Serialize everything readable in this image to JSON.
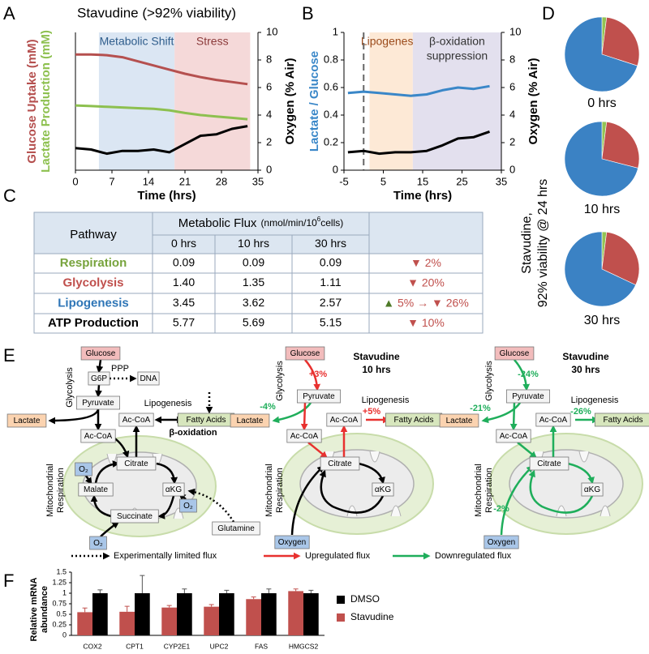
{
  "panel_labels": [
    "A",
    "B",
    "C",
    "D",
    "E",
    "F"
  ],
  "chart_data": [
    {
      "type": "line",
      "title": "Stavudine (>92% viability)",
      "x_label": "Time (hrs)",
      "y_label": [
        "Glucose Uptake (mM)",
        "Lactate Production (mM)"
      ],
      "y2_label": "Oxygen (% Air)",
      "xlim": [
        0,
        35
      ],
      "xticks": [
        0,
        7,
        14,
        21,
        28,
        35
      ],
      "ylim": [
        0,
        2
      ],
      "y2lim": [
        0,
        10
      ],
      "y2ticks": [
        0,
        2,
        4,
        6,
        8,
        10
      ],
      "regions": [
        {
          "label": [
            "Metabolic Shift"
          ],
          "xlim": [
            4.5,
            19
          ],
          "color": "#dbe6f3",
          "text_color": "#2f5d8c"
        },
        {
          "label": [
            "Stress"
          ],
          "xlim": [
            19,
            33.5
          ],
          "color": "#f5d9d9",
          "text_color": "#8b3a3a"
        }
      ],
      "x": [
        0,
        3,
        6,
        9,
        12,
        15,
        18,
        21,
        24,
        27,
        30,
        33
      ],
      "series": [
        {
          "color": "#b5504f",
          "values": [
            1.68,
            1.68,
            1.67,
            1.64,
            1.58,
            1.52,
            1.46,
            1.4,
            1.35,
            1.31,
            1.28,
            1.25
          ]
        },
        {
          "color": "#8dc04f",
          "values": [
            0.94,
            0.93,
            0.92,
            0.91,
            0.9,
            0.89,
            0.87,
            0.83,
            0.8,
            0.78,
            0.76,
            0.74
          ]
        },
        {
          "color": "#000000",
          "axis": "y2",
          "values": [
            1.6,
            1.5,
            1.2,
            1.4,
            1.4,
            1.5,
            1.3,
            1.9,
            2.5,
            2.6,
            3.0,
            3.2
          ]
        }
      ]
    },
    {
      "type": "line",
      "x_label": "Time (hrs)",
      "y_label": [
        "Lactate / Glucose"
      ],
      "y2_label": "Oxygen (% Air)",
      "xlim": [
        -5,
        35
      ],
      "xticks": [
        -5,
        5,
        15,
        25,
        35
      ],
      "ylim": [
        0,
        1
      ],
      "yticks": [
        0,
        0.2,
        0.4,
        0.6,
        0.8,
        1
      ],
      "y2lim": [
        0,
        10
      ],
      "y2ticks": [
        0,
        2,
        4,
        6,
        8,
        10
      ],
      "vline": 0,
      "regions": [
        {
          "label": [
            "Lipogenesis"
          ],
          "xlim": [
            1.5,
            12.5
          ],
          "color": "#fde9d6",
          "text_color": "#9b4b1b"
        },
        {
          "label": [
            "β-oxidation",
            "suppression"
          ],
          "xlim": [
            12.5,
            35
          ],
          "color": "#e3e0ee",
          "text_color": "#333333"
        }
      ],
      "x": [
        -4,
        0,
        4,
        8,
        12,
        16,
        20,
        24,
        28,
        32
      ],
      "series": [
        {
          "color": "#3a87c8",
          "values": [
            0.56,
            0.57,
            0.56,
            0.55,
            0.54,
            0.55,
            0.58,
            0.6,
            0.59,
            0.61
          ]
        },
        {
          "color": "#000000",
          "axis": "y2",
          "values": [
            1.3,
            1.4,
            1.2,
            1.3,
            1.3,
            1.4,
            1.8,
            2.3,
            2.4,
            2.8
          ]
        }
      ]
    },
    {
      "type": "pie",
      "title": "0 hrs",
      "values": [
        2,
        28,
        70
      ],
      "colors": [
        "#92c353",
        "#c0504d",
        "#3b82c4"
      ]
    },
    {
      "type": "pie",
      "title": "10 hrs",
      "values": [
        2,
        27,
        71
      ],
      "colors": [
        "#92c353",
        "#c0504d",
        "#3b82c4"
      ]
    },
    {
      "type": "pie",
      "title": "30 hrs",
      "values": [
        2,
        30,
        68
      ],
      "colors": [
        "#92c353",
        "#c0504d",
        "#3b82c4"
      ]
    },
    {
      "type": "bar",
      "y_label": [
        "Relative mRNA",
        "abundance"
      ],
      "categories": [
        "COX2",
        "CPT1",
        "CYP2E1",
        "UPC2",
        "FAS",
        "HMGCS2"
      ],
      "ylim": [
        0,
        1.5
      ],
      "yticks": [
        0,
        0.25,
        0.5,
        0.75,
        1,
        1.25,
        1.5
      ],
      "series": [
        {
          "name": "Stavudine",
          "color": "#c0504d",
          "values": [
            0.55,
            0.56,
            0.66,
            0.68,
            0.86,
            1.05
          ],
          "errors": [
            0.1,
            0.13,
            0.05,
            0.05,
            0.05,
            0.05
          ]
        },
        {
          "name": "DMSO",
          "color": "#000000",
          "values": [
            1,
            1,
            1,
            1,
            1,
            1
          ],
          "errors": [
            0.08,
            0.42,
            0.1,
            0.07,
            0.1,
            0.07
          ]
        }
      ]
    }
  ],
  "pie_caption": [
    "Stavudine,",
    "92% viability @ 24 hrs"
  ],
  "table": {
    "header": {
      "pathway": "Pathway",
      "flux": "Metabolic Flux",
      "unit": [
        "(nmol/min/10",
        "6",
        "cells)"
      ],
      "times": [
        "0 hrs",
        "10 hrs",
        "30 hrs"
      ]
    },
    "rows": [
      {
        "name": "Respiration",
        "color": "#77a33c",
        "values": [
          "0.09",
          "0.09",
          "0.09"
        ],
        "change": [
          {
            "text": "▼ 2%",
            "color": "#c0504d"
          }
        ]
      },
      {
        "name": "Glycolysis",
        "color": "#c0504d",
        "values": [
          "1.40",
          "1.35",
          "1.11"
        ],
        "change": [
          {
            "text": "▼ 20%",
            "color": "#c0504d"
          }
        ]
      },
      {
        "name": "Lipogenesis",
        "color": "#2e75b6",
        "values": [
          "3.45",
          "3.62",
          "2.57"
        ],
        "change": [
          {
            "text": "▲",
            "color": "#4e7a28"
          },
          {
            "text": " 5% → ▼ 26%",
            "color": "#c0504d"
          }
        ]
      },
      {
        "name": "ATP Production",
        "color": "#000000",
        "values": [
          "5.77",
          "5.69",
          "5.15"
        ],
        "change": [
          {
            "text": "▼ 10%",
            "color": "#c0504d"
          }
        ]
      }
    ]
  },
  "diagram": {
    "panels": [
      {
        "nodes": [
          "Glucose",
          "G6P",
          "DNA",
          "Pyruvate",
          "Lactate",
          "Ac-CoA",
          "Fatty Acids",
          "Ac-CoA",
          "Citrate",
          "O₂",
          "Malate",
          "αKG",
          "O₂",
          "Succinate",
          "O₂",
          "Glutamine"
        ],
        "labels": [
          "Glycolysis",
          "PPP",
          "Lipogenesis",
          "β-oxidation",
          "Mitochondrial",
          "Respiration"
        ]
      },
      {
        "title": [
          "Stavudine",
          "10 hrs"
        ],
        "nodes": [
          "Glucose",
          "Pyruvate",
          "Lactate",
          "Ac-CoA",
          "Fatty Acids",
          "Ac-CoA",
          "Citrate",
          "αKG",
          "Oxygen"
        ],
        "labels": [
          "Glycolysis",
          "Lipogenesis",
          "Mitochondrial",
          "Respiration"
        ],
        "changes": [
          "+3%",
          "-4%",
          "+5%"
        ]
      },
      {
        "title": [
          "Stavudine",
          "30 hrs"
        ],
        "nodes": [
          "Glucose",
          "Pyruvate",
          "Lactate",
          "Ac-CoA",
          "Fatty Acids",
          "Ac-CoA",
          "Citrate",
          "αKG",
          "Oxygen"
        ],
        "labels": [
          "Glycolysis",
          "Lipogenesis",
          "Mitochondrial",
          "Respiration"
        ],
        "changes": [
          "-24%",
          "-21%",
          "-26%",
          "-2%"
        ]
      }
    ],
    "legend": [
      "Experimentally limited flux",
      "Upregulated flux",
      "Downregulated flux"
    ]
  }
}
